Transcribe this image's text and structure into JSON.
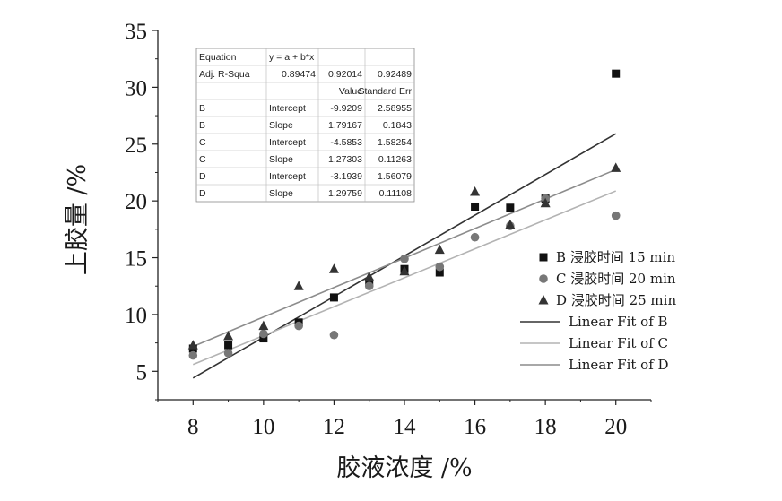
{
  "chart_data": {
    "type": "scatter",
    "xlabel": "胶液浓度 /%",
    "ylabel": "上胶量 /%",
    "xlim": [
      7,
      21
    ],
    "ylim": [
      2.5,
      35
    ],
    "x_ticks": [
      8,
      10,
      12,
      14,
      16,
      18,
      20
    ],
    "y_ticks": [
      5,
      10,
      15,
      20,
      25,
      30,
      35
    ],
    "legend_position": "right",
    "series": [
      {
        "name": "B 浸胶时间 15 min",
        "marker": "square",
        "color": "#111111",
        "x": [
          8,
          9,
          10,
          11,
          12,
          13,
          14,
          15,
          16,
          17,
          18,
          20
        ],
        "y": [
          7.0,
          7.3,
          7.9,
          9.3,
          11.5,
          12.8,
          14.0,
          13.7,
          19.5,
          19.4,
          20.2,
          31.2
        ]
      },
      {
        "name": "C 浸胶时间 20 min",
        "marker": "circle",
        "color": "#777777",
        "x": [
          8,
          9,
          10,
          11,
          12,
          13,
          14,
          15,
          16,
          17,
          18,
          20
        ],
        "y": [
          6.4,
          6.6,
          8.3,
          9.0,
          8.2,
          12.5,
          14.9,
          14.2,
          16.8,
          17.8,
          20.2,
          18.7
        ]
      },
      {
        "name": "D 浸胶时间 25 min",
        "marker": "triangle",
        "color": "#333333",
        "x": [
          8,
          9,
          10,
          11,
          12,
          13,
          14,
          15,
          16,
          17,
          18,
          20
        ],
        "y": [
          7.3,
          8.1,
          9.0,
          12.5,
          14.0,
          13.3,
          13.8,
          15.7,
          20.8,
          17.9,
          19.8,
          22.9
        ]
      }
    ],
    "fits": [
      {
        "name": "Linear Fit of B",
        "intercept": -9.9209,
        "slope": 1.79167,
        "color": "#333333"
      },
      {
        "name": "Linear Fit of C",
        "intercept": -4.5853,
        "slope": 1.27303,
        "color": "#b3b3b3"
      },
      {
        "name": "Linear Fit of D",
        "intercept": -3.1939,
        "slope": 1.29759,
        "color": "#8c8c8c"
      }
    ],
    "fit_range": [
      8,
      20
    ],
    "fit_table": {
      "rows": [
        [
          "Equation",
          "y = a + b*x",
          "",
          ""
        ],
        [
          "Adj. R-Squa",
          "0.89474",
          "0.92014",
          "0.92489"
        ],
        [
          "",
          "",
          "Value",
          "Standard Err"
        ],
        [
          "B",
          "Intercept",
          "-9.9209",
          "2.58955"
        ],
        [
          "B",
          "Slope",
          "1.79167",
          "0.1843"
        ],
        [
          "C",
          "Intercept",
          "-4.5853",
          "1.58254"
        ],
        [
          "C",
          "Slope",
          "1.27303",
          "0.11263"
        ],
        [
          "D",
          "Intercept",
          "-3.1939",
          "1.56079"
        ],
        [
          "D",
          "Slope",
          "1.29759",
          "0.11108"
        ]
      ]
    }
  }
}
